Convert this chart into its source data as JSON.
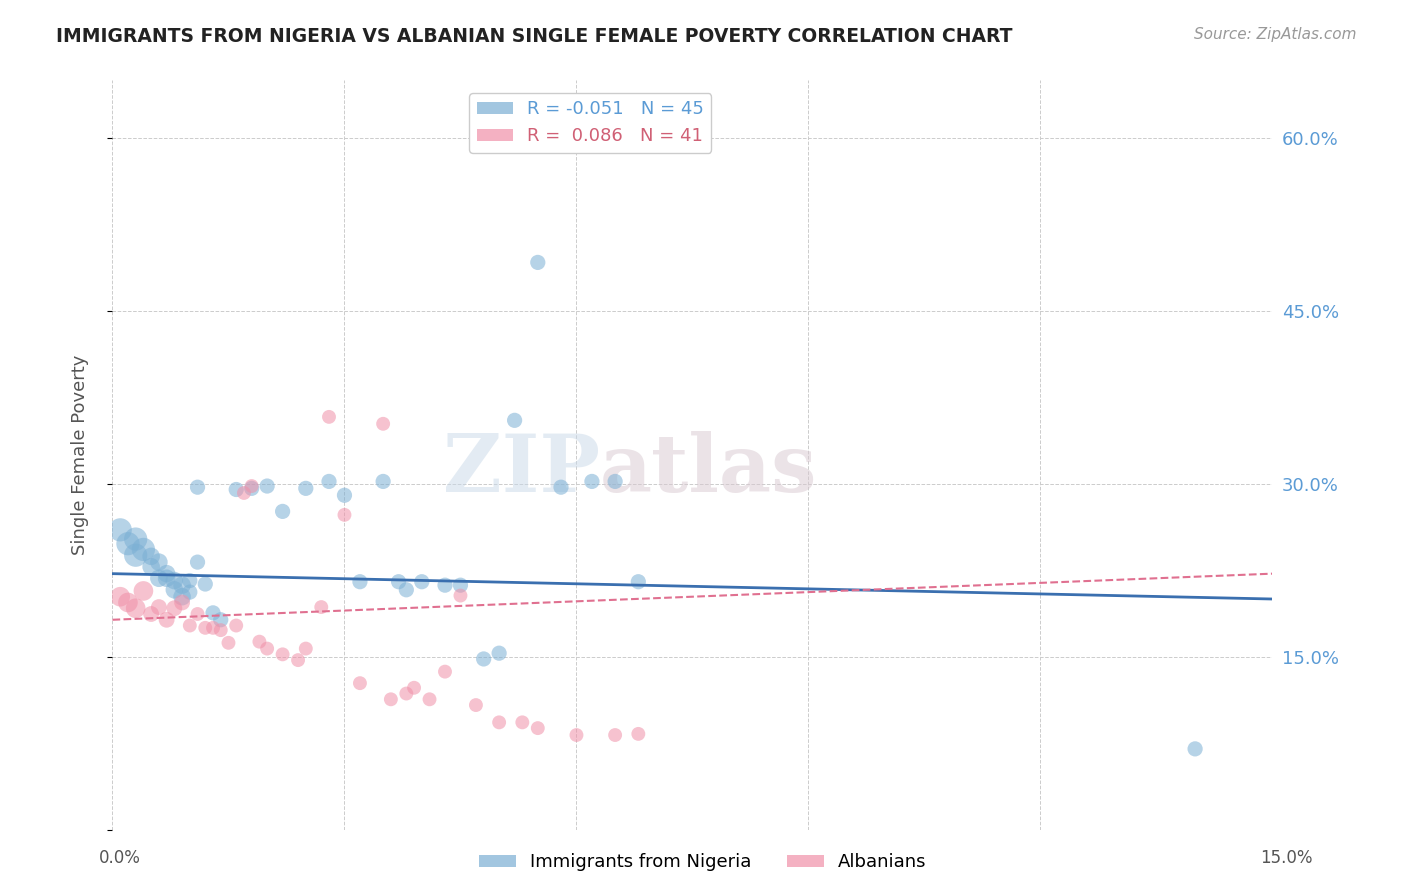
{
  "title": "IMMIGRANTS FROM NIGERIA VS ALBANIAN SINGLE FEMALE POVERTY CORRELATION CHART",
  "source": "Source: ZipAtlas.com",
  "ylabel": "Single Female Poverty",
  "yticks": [
    0.0,
    0.15,
    0.3,
    0.45,
    0.6
  ],
  "ytick_labels": [
    "",
    "15.0%",
    "30.0%",
    "45.0%",
    "60.0%"
  ],
  "xlim": [
    0.0,
    0.15
  ],
  "ylim": [
    0.0,
    0.65
  ],
  "xtick_vals": [
    0.0,
    0.03,
    0.06,
    0.09,
    0.12,
    0.15
  ],
  "nigeria_color": "#7bafd4",
  "albania_color": "#f090a8",
  "nigeria_line_color": "#3a6faf",
  "albania_line_color": "#e07090",
  "watermark_part1": "ZIP",
  "watermark_part2": "atlas",
  "nigeria_line": [
    0.0,
    0.222,
    0.15,
    0.2
  ],
  "albania_line": [
    0.0,
    0.182,
    0.15,
    0.222
  ],
  "nigeria_points": [
    [
      0.001,
      0.26
    ],
    [
      0.002,
      0.248
    ],
    [
      0.003,
      0.252
    ],
    [
      0.003,
      0.238
    ],
    [
      0.004,
      0.243
    ],
    [
      0.005,
      0.237
    ],
    [
      0.005,
      0.228
    ],
    [
      0.006,
      0.232
    ],
    [
      0.006,
      0.218
    ],
    [
      0.007,
      0.222
    ],
    [
      0.007,
      0.218
    ],
    [
      0.008,
      0.208
    ],
    [
      0.008,
      0.216
    ],
    [
      0.009,
      0.202
    ],
    [
      0.009,
      0.212
    ],
    [
      0.01,
      0.216
    ],
    [
      0.01,
      0.206
    ],
    [
      0.011,
      0.232
    ],
    [
      0.011,
      0.297
    ],
    [
      0.012,
      0.213
    ],
    [
      0.013,
      0.188
    ],
    [
      0.014,
      0.182
    ],
    [
      0.016,
      0.295
    ],
    [
      0.018,
      0.296
    ],
    [
      0.02,
      0.298
    ],
    [
      0.022,
      0.276
    ],
    [
      0.025,
      0.296
    ],
    [
      0.028,
      0.302
    ],
    [
      0.03,
      0.29
    ],
    [
      0.032,
      0.215
    ],
    [
      0.035,
      0.302
    ],
    [
      0.037,
      0.215
    ],
    [
      0.038,
      0.208
    ],
    [
      0.04,
      0.215
    ],
    [
      0.043,
      0.212
    ],
    [
      0.045,
      0.212
    ],
    [
      0.048,
      0.148
    ],
    [
      0.05,
      0.153
    ],
    [
      0.052,
      0.355
    ],
    [
      0.055,
      0.492
    ],
    [
      0.058,
      0.297
    ],
    [
      0.062,
      0.302
    ],
    [
      0.065,
      0.302
    ],
    [
      0.068,
      0.215
    ],
    [
      0.14,
      0.07
    ]
  ],
  "albania_points": [
    [
      0.001,
      0.202
    ],
    [
      0.002,
      0.197
    ],
    [
      0.003,
      0.192
    ],
    [
      0.004,
      0.207
    ],
    [
      0.005,
      0.187
    ],
    [
      0.006,
      0.193
    ],
    [
      0.007,
      0.182
    ],
    [
      0.008,
      0.192
    ],
    [
      0.009,
      0.197
    ],
    [
      0.01,
      0.177
    ],
    [
      0.011,
      0.187
    ],
    [
      0.012,
      0.175
    ],
    [
      0.013,
      0.175
    ],
    [
      0.014,
      0.173
    ],
    [
      0.015,
      0.162
    ],
    [
      0.016,
      0.177
    ],
    [
      0.017,
      0.292
    ],
    [
      0.018,
      0.298
    ],
    [
      0.019,
      0.163
    ],
    [
      0.02,
      0.157
    ],
    [
      0.022,
      0.152
    ],
    [
      0.024,
      0.147
    ],
    [
      0.025,
      0.157
    ],
    [
      0.027,
      0.193
    ],
    [
      0.028,
      0.358
    ],
    [
      0.03,
      0.273
    ],
    [
      0.032,
      0.127
    ],
    [
      0.035,
      0.352
    ],
    [
      0.036,
      0.113
    ],
    [
      0.038,
      0.118
    ],
    [
      0.039,
      0.123
    ],
    [
      0.041,
      0.113
    ],
    [
      0.043,
      0.137
    ],
    [
      0.045,
      0.203
    ],
    [
      0.047,
      0.108
    ],
    [
      0.05,
      0.093
    ],
    [
      0.053,
      0.093
    ],
    [
      0.055,
      0.088
    ],
    [
      0.06,
      0.082
    ],
    [
      0.065,
      0.082
    ],
    [
      0.068,
      0.083
    ]
  ]
}
